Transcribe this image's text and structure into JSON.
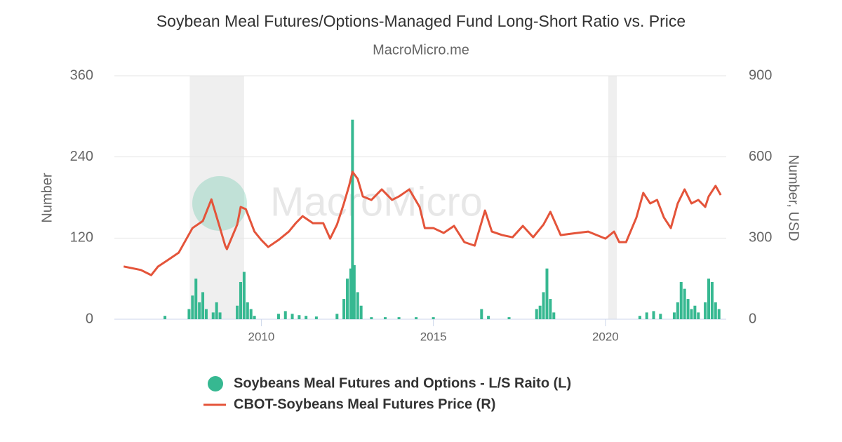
{
  "chart_data": {
    "type": "combo",
    "title": "Soybean Meal Futures/Options-Managed Fund Long-Short Ratio vs. Price",
    "subtitle": "MacroMicro.me",
    "watermark": "MacroMicro",
    "y_label": "Number",
    "y2_label": "Number, USD",
    "xlim": [
      2005.73,
      2023.51
    ],
    "xticks": [
      2010,
      2015,
      2020
    ],
    "ylim": [
      0,
      360
    ],
    "yticks": [
      0,
      120,
      240,
      360
    ],
    "y2lim": [
      0,
      900
    ],
    "y2ticks": [
      0,
      300,
      600,
      900
    ],
    "grid": true,
    "shaded_ranges": [
      [
        2007.92,
        2009.5
      ],
      [
        2020.08,
        2020.33
      ]
    ],
    "shade_color": "#efefef",
    "series": [
      {
        "name": "Soybeans Meal Futures and Options - L/S Raito (L)",
        "type": "bar",
        "axis": "y",
        "color": "#36b891",
        "x": [
          2007.2,
          2007.9,
          2008.0,
          2008.1,
          2008.2,
          2008.3,
          2008.4,
          2008.6,
          2008.7,
          2008.8,
          2009.3,
          2009.4,
          2009.5,
          2009.6,
          2009.7,
          2009.8,
          2010.5,
          2010.7,
          2010.9,
          2011.1,
          2011.3,
          2011.6,
          2012.2,
          2012.4,
          2012.5,
          2012.6,
          2012.65,
          2012.7,
          2012.8,
          2012.9,
          2013.2,
          2013.6,
          2014.0,
          2014.5,
          2015.0,
          2016.4,
          2016.6,
          2017.2,
          2018.0,
          2018.1,
          2018.2,
          2018.3,
          2018.4,
          2018.5,
          2021.0,
          2021.2,
          2021.4,
          2021.6,
          2022.0,
          2022.1,
          2022.2,
          2022.3,
          2022.4,
          2022.5,
          2022.6,
          2022.7,
          2022.9,
          2023.0,
          2023.1,
          2023.2,
          2023.3
        ],
        "values": [
          5,
          15,
          35,
          60,
          25,
          40,
          15,
          10,
          25,
          10,
          20,
          55,
          70,
          25,
          15,
          5,
          8,
          12,
          8,
          6,
          5,
          4,
          8,
          30,
          60,
          75,
          295,
          80,
          40,
          20,
          3,
          3,
          3,
          3,
          3,
          15,
          5,
          3,
          15,
          20,
          40,
          75,
          30,
          10,
          5,
          10,
          12,
          8,
          10,
          25,
          55,
          45,
          30,
          15,
          20,
          10,
          25,
          60,
          55,
          25,
          15
        ]
      },
      {
        "name": "CBOT-Soybeans Meal Futures Price (R)",
        "type": "line",
        "axis": "y2",
        "color": "#e4543a",
        "x": [
          2006.0,
          2006.5,
          2006.8,
          2007.0,
          2007.3,
          2007.6,
          2008.0,
          2008.3,
          2008.55,
          2008.8,
          2008.95,
          2009.0,
          2009.3,
          2009.4,
          2009.55,
          2009.8,
          2010.0,
          2010.2,
          2010.5,
          2010.8,
          2011.0,
          2011.2,
          2011.5,
          2011.8,
          2012.0,
          2012.2,
          2012.4,
          2012.55,
          2012.65,
          2012.8,
          2012.95,
          2013.2,
          2013.5,
          2013.8,
          2014.0,
          2014.3,
          2014.6,
          2014.75,
          2015.0,
          2015.3,
          2015.6,
          2015.9,
          2016.2,
          2016.5,
          2016.7,
          2017.0,
          2017.3,
          2017.6,
          2017.9,
          2018.2,
          2018.4,
          2018.7,
          2019.0,
          2019.5,
          2020.0,
          2020.25,
          2020.4,
          2020.6,
          2020.9,
          2021.1,
          2021.3,
          2021.5,
          2021.7,
          2021.9,
          2022.1,
          2022.3,
          2022.5,
          2022.7,
          2022.9,
          2023.0,
          2023.2,
          2023.35
        ],
        "values": [
          195,
          182,
          163,
          195,
          220,
          246,
          337,
          363,
          443,
          337,
          272,
          259,
          350,
          415,
          407,
          324,
          293,
          267,
          293,
          324,
          355,
          381,
          355,
          355,
          298,
          350,
          428,
          493,
          545,
          519,
          454,
          441,
          480,
          441,
          454,
          480,
          415,
          337,
          337,
          319,
          345,
          285,
          272,
          402,
          324,
          311,
          303,
          345,
          303,
          350,
          397,
          311,
          316,
          324,
          298,
          324,
          285,
          285,
          376,
          467,
          428,
          441,
          376,
          337,
          428,
          480,
          428,
          441,
          415,
          454,
          493,
          459
        ]
      }
    ]
  }
}
